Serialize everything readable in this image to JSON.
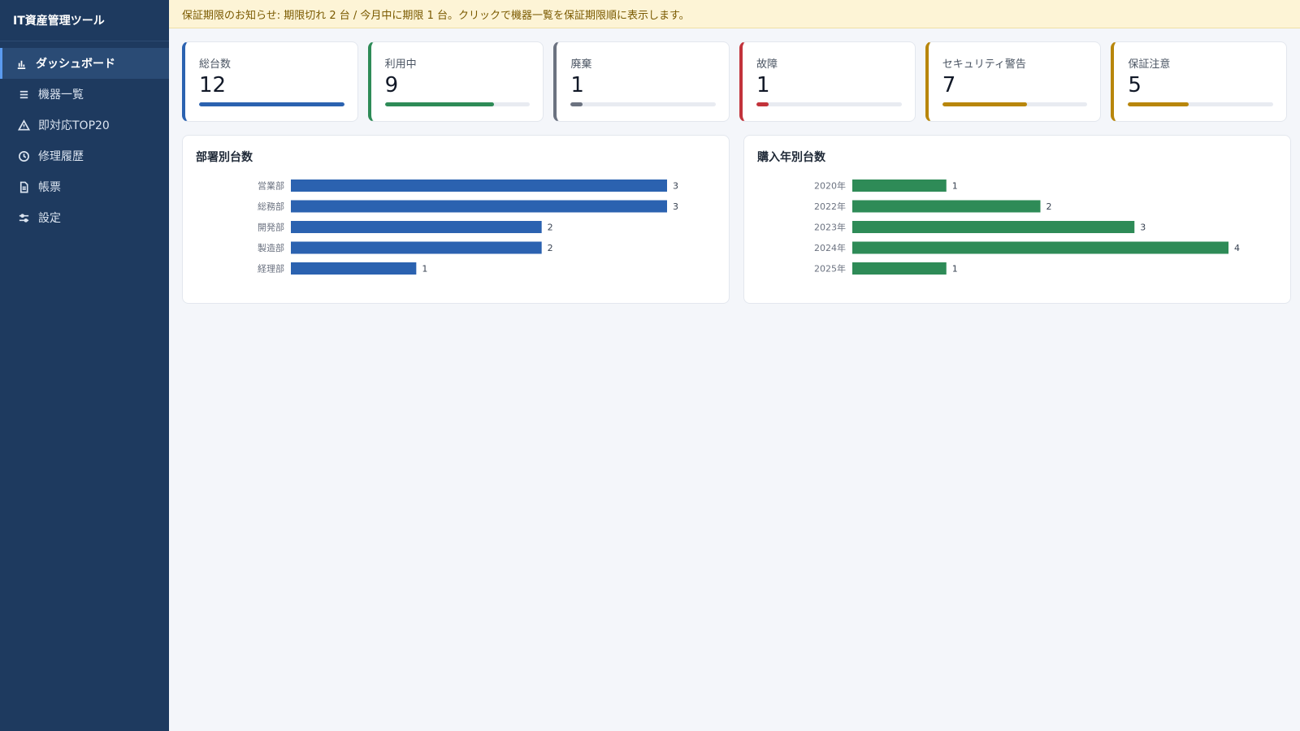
{
  "app_title": "IT資産管理ツール",
  "nav": [
    {
      "label": "ダッシュボード",
      "icon": "bar-chart-icon",
      "active": true
    },
    {
      "label": "機器一覧",
      "icon": "list-icon",
      "active": false
    },
    {
      "label": "即対応TOP20",
      "icon": "warning-icon",
      "active": false
    },
    {
      "label": "修理履歴",
      "icon": "clock-icon",
      "active": false
    },
    {
      "label": "帳票",
      "icon": "document-icon",
      "active": false
    },
    {
      "label": "設定",
      "icon": "sliders-icon",
      "active": false
    }
  ],
  "notice": "保証期限のお知らせ: 期限切れ 2 台 / 今月中に期限 1 台。クリックで機器一覧を保証期限順に表示します。",
  "stats": [
    {
      "label": "総台数",
      "value": "12",
      "fill": 1.0,
      "color": "#2b62b0"
    },
    {
      "label": "利用中",
      "value": "9",
      "fill": 0.75,
      "color": "#2e8b57"
    },
    {
      "label": "廃棄",
      "value": "1",
      "fill": 0.083,
      "color": "#6b7280"
    },
    {
      "label": "故障",
      "value": "1",
      "fill": 0.083,
      "color": "#c2333b"
    },
    {
      "label": "セキュリティ警告",
      "value": "7",
      "fill": 0.583,
      "color": "#b8860b"
    },
    {
      "label": "保証注意",
      "value": "5",
      "fill": 0.417,
      "color": "#b8860b"
    }
  ],
  "chart_data": [
    {
      "type": "bar",
      "orientation": "horizontal",
      "title": "部署別台数",
      "categories": [
        "営業部",
        "総務部",
        "開発部",
        "製造部",
        "経理部"
      ],
      "values": [
        3,
        3,
        2,
        2,
        1
      ],
      "xlim": [
        0,
        3
      ],
      "color": "#2b62b0",
      "grid": false
    },
    {
      "type": "bar",
      "orientation": "horizontal",
      "title": "購入年別台数",
      "categories": [
        "2020年",
        "2022年",
        "2023年",
        "2024年",
        "2025年"
      ],
      "values": [
        1,
        2,
        3,
        4,
        1
      ],
      "xlim": [
        0,
        4
      ],
      "color": "#2e8b57",
      "grid": false
    }
  ]
}
